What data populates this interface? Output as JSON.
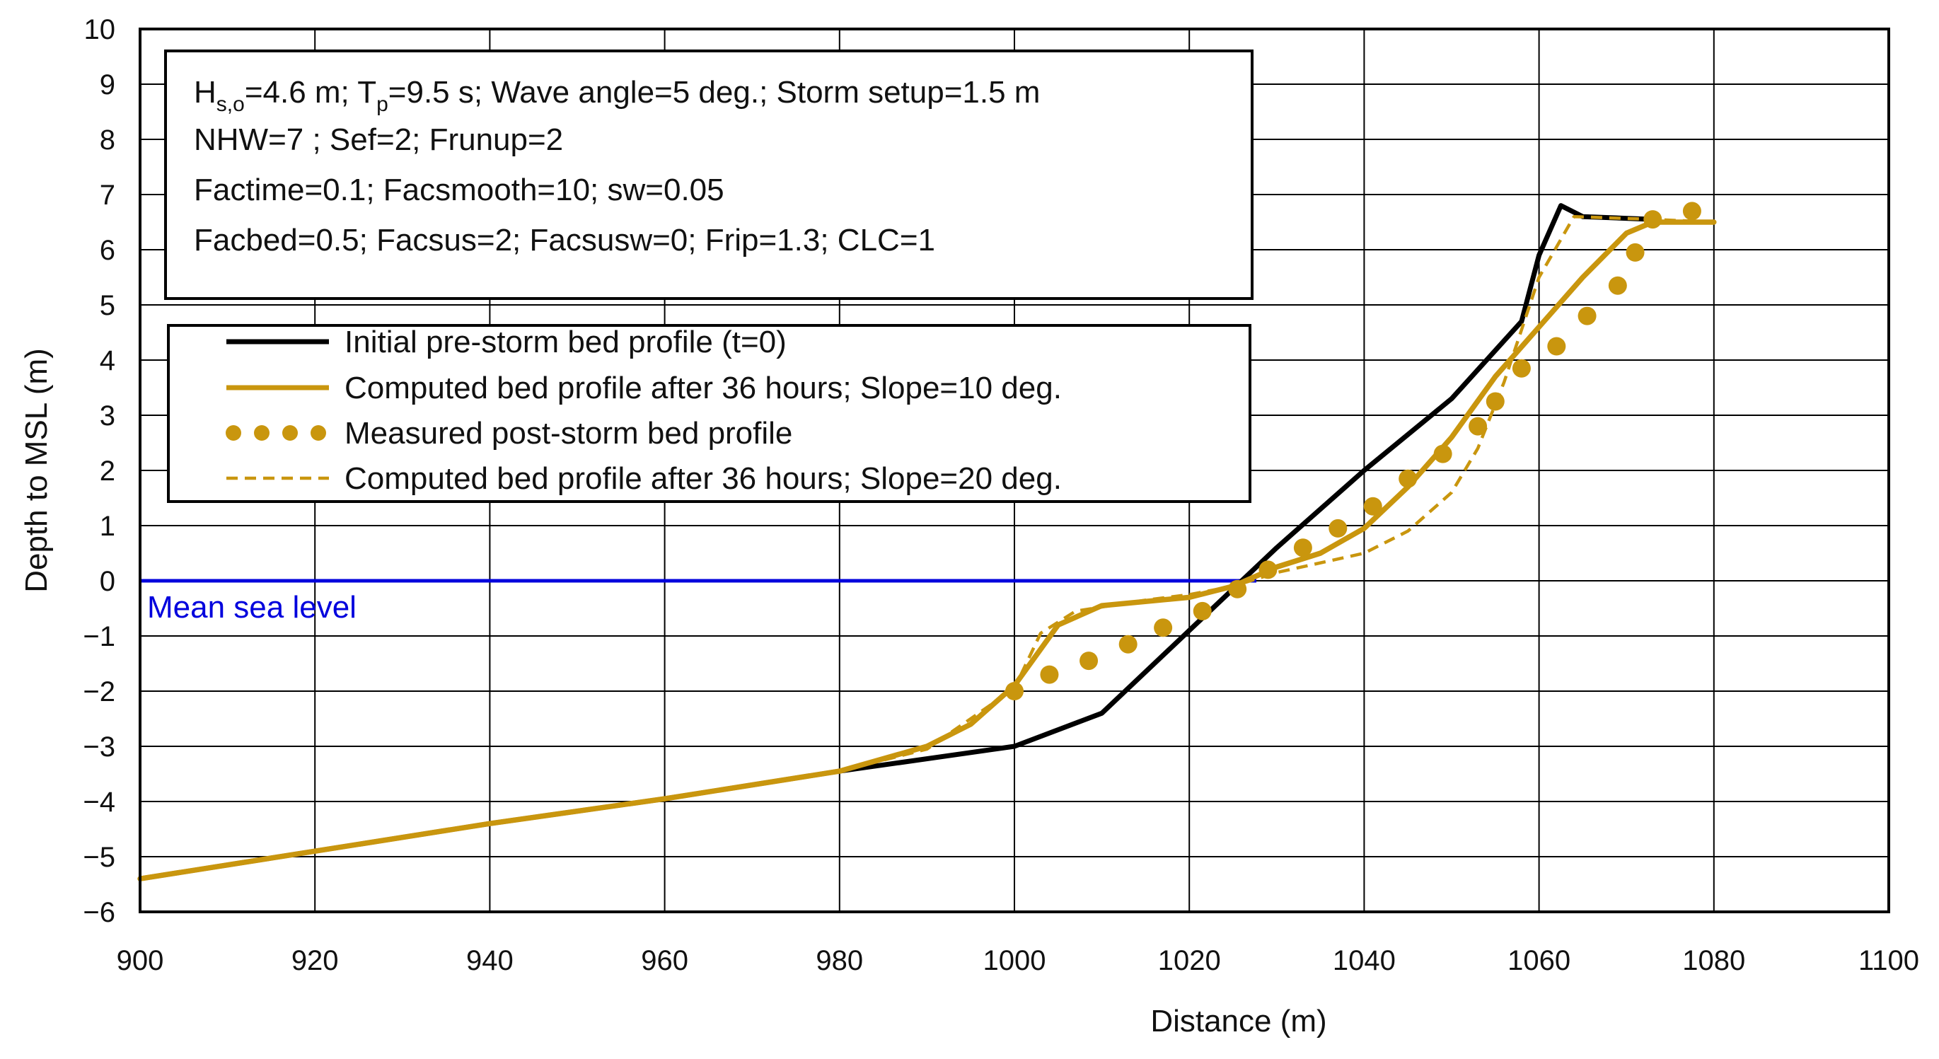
{
  "chart_data": {
    "type": "line",
    "title": "",
    "xlabel": "Distance (m)",
    "ylabel": "Depth to MSL (m)",
    "xlim": [
      900,
      1100
    ],
    "ylim": [
      -6,
      10
    ],
    "x_ticks": [
      "900",
      "920",
      "940",
      "960",
      "980",
      "1000",
      "1020",
      "1040",
      "1060",
      "1080",
      "1100"
    ],
    "y_ticks": [
      "10",
      "9",
      "8",
      "7",
      "6",
      "5",
      "4",
      "3",
      "2",
      "1",
      "0",
      "−1",
      "−2",
      "−3",
      "−4",
      "−5",
      "−6"
    ],
    "grid": true,
    "parameters": {
      "line1": {
        "h_main": "H",
        "h_sub": "s,o",
        "h_rest": "=4.6 m; T",
        "t_sub": "p",
        "t_rest": "=9.5 s; Wave angle=5 deg.; Storm setup=1.5 m"
      },
      "line2": "NHW=7 ; Sef=2; Frunup=2",
      "line3": "Factime=0.1; Facsmooth=10; sw=0.05",
      "line4": "Facbed=0.5; Facsus=2; Facsusw=0;  Frip=1.3; CLC=1"
    },
    "mean_sea_level": {
      "label": "Mean sea level",
      "y": 0,
      "color": "#0000dd"
    },
    "series": [
      {
        "name": "Initial pre-storm bed profile (t=0)",
        "style": "solid",
        "color": "#000000",
        "x": [
          900,
          920,
          940,
          960,
          980,
          1000,
          1010,
          1020,
          1030,
          1040,
          1050,
          1058,
          1060,
          1062.5,
          1065,
          1073
        ],
        "y": [
          -5.4,
          -4.9,
          -4.4,
          -3.95,
          -3.45,
          -3.0,
          -2.4,
          -0.9,
          0.6,
          2.0,
          3.3,
          4.7,
          5.9,
          6.8,
          6.6,
          6.55
        ]
      },
      {
        "name": "Computed bed profile after 36 hours; Slope=10 deg.",
        "style": "solid",
        "color": "#c9960e",
        "x": [
          900,
          920,
          940,
          960,
          980,
          990,
          995,
          1000,
          1005,
          1010,
          1020,
          1025,
          1030,
          1035,
          1040,
          1045,
          1050,
          1055,
          1060,
          1065,
          1070,
          1073,
          1080
        ],
        "y": [
          -5.4,
          -4.9,
          -4.4,
          -3.95,
          -3.45,
          -3.0,
          -2.6,
          -1.9,
          -0.8,
          -0.45,
          -0.3,
          -0.1,
          0.25,
          0.5,
          0.95,
          1.7,
          2.6,
          3.7,
          4.6,
          5.5,
          6.3,
          6.5,
          6.5
        ]
      },
      {
        "name": "Measured post-storm bed profile",
        "style": "dots",
        "color": "#c9960e",
        "x": [
          1000,
          1004,
          1008.5,
          1013,
          1017,
          1021.5,
          1025.5,
          1029,
          1033,
          1037,
          1041,
          1045,
          1049,
          1053,
          1055,
          1058,
          1062,
          1065.5,
          1069,
          1071,
          1073,
          1077.5
        ],
        "y": [
          -2.0,
          -1.7,
          -1.45,
          -1.15,
          -0.85,
          -0.55,
          -0.15,
          0.2,
          0.6,
          0.95,
          1.35,
          1.85,
          2.3,
          2.8,
          3.25,
          3.85,
          4.25,
          4.8,
          5.35,
          5.95,
          6.55,
          6.7
        ]
      },
      {
        "name": "Computed bed profile after 36 hours; Slope=20 deg.",
        "style": "dashed",
        "color": "#c9960e",
        "x": [
          900,
          920,
          940,
          960,
          980,
          990,
          1000,
          1003,
          1007,
          1015,
          1020,
          1025,
          1030,
          1040,
          1045,
          1050,
          1053,
          1056,
          1060,
          1064,
          1073,
          1080
        ],
        "y": [
          -5.4,
          -4.9,
          -4.4,
          -3.95,
          -3.45,
          -3.05,
          -1.95,
          -0.95,
          -0.55,
          -0.35,
          -0.25,
          -0.1,
          0.15,
          0.5,
          0.9,
          1.6,
          2.4,
          3.6,
          5.5,
          6.6,
          6.55,
          6.5
        ]
      }
    ]
  }
}
